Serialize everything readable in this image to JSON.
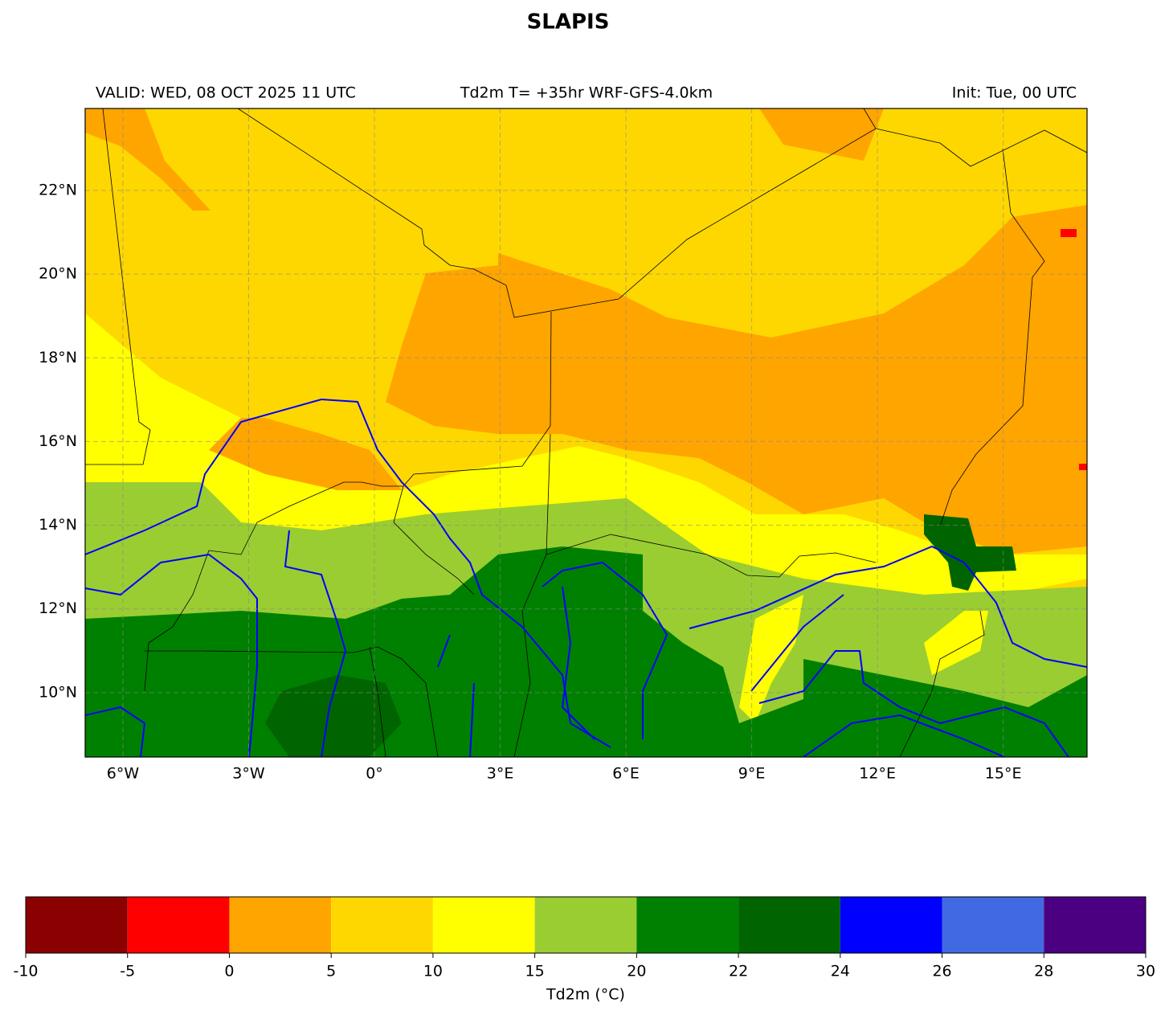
{
  "title": "SLAPIS",
  "valid": "VALID: WED, 08 OCT 2025 11 UTC",
  "product": "Td2m T= +35hr WRF-GFS-4.0km",
  "init": "Init: Tue, 00 UTC",
  "map": {
    "xlim": [
      -6.9,
      17.0
    ],
    "ylim": [
      8.46,
      23.96
    ],
    "xticks": [
      {
        "value": -6,
        "label": "6°W"
      },
      {
        "value": -3,
        "label": "3°W"
      },
      {
        "value": 0,
        "label": "0°"
      },
      {
        "value": 3,
        "label": "3°E"
      },
      {
        "value": 6,
        "label": "6°E"
      },
      {
        "value": 9,
        "label": "9°E"
      },
      {
        "value": 12,
        "label": "12°E"
      },
      {
        "value": 15,
        "label": "15°E"
      }
    ],
    "yticks": [
      {
        "value": 10,
        "label": "10°N"
      },
      {
        "value": 12,
        "label": "12°N"
      },
      {
        "value": 14,
        "label": "14°N"
      },
      {
        "value": 16,
        "label": "16°N"
      },
      {
        "value": 18,
        "label": "18°N"
      },
      {
        "value": 20,
        "label": "20°N"
      },
      {
        "value": 22,
        "label": "22°N"
      }
    ],
    "grid": true
  },
  "colorbar": {
    "label": "Td2m (°C)",
    "bounds": [
      -10,
      -5,
      0,
      5,
      10,
      15,
      20,
      22,
      24,
      26,
      28,
      30
    ],
    "colors": [
      "#8b0000",
      "#ff0000",
      "#ffa500",
      "#ffd700",
      "#ffff00",
      "#9acd32",
      "#008000",
      "#006400",
      "#0000ff",
      "#4169e1",
      "#4b0082"
    ]
  }
}
